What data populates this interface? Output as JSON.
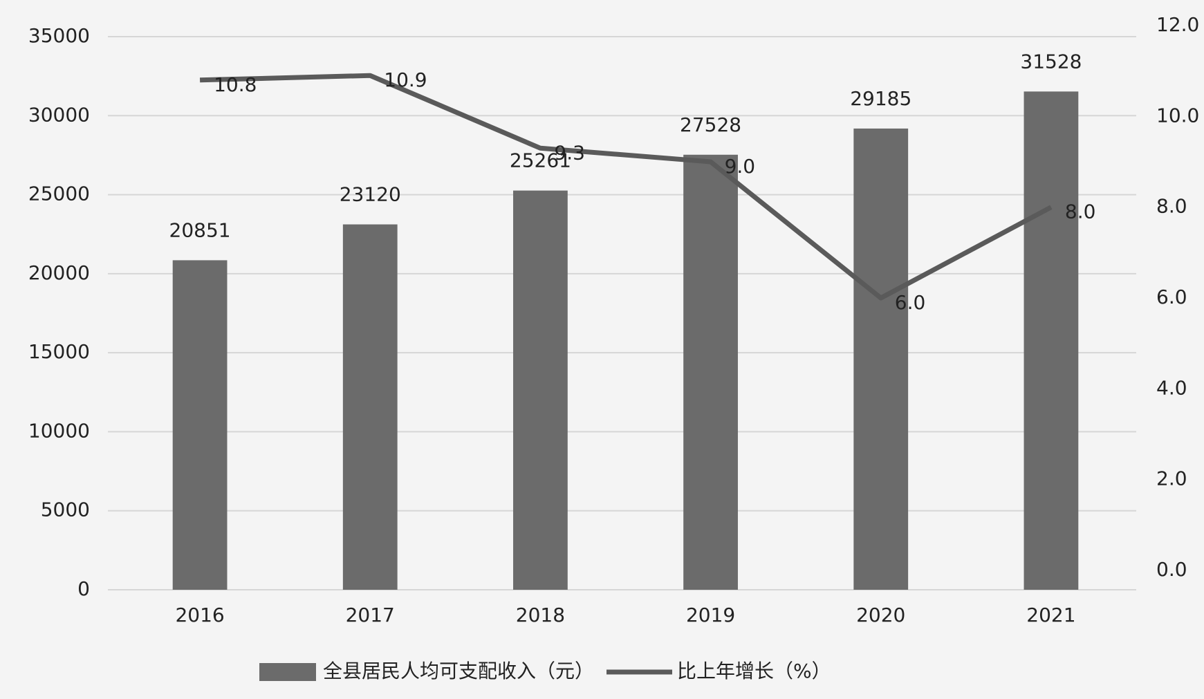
{
  "chart_data": {
    "type": "bar",
    "categories": [
      "2016",
      "2017",
      "2018",
      "2019",
      "2020",
      "2021"
    ],
    "series": [
      {
        "name": "全县居民人均可支配收入（元）",
        "type": "bar",
        "color": "#6b6b6b",
        "values": [
          20851,
          23120,
          25261,
          27528,
          29185,
          31528
        ]
      },
      {
        "name": "比上年增长（%）",
        "type": "line",
        "axis": "y2",
        "color": "#5a5a5a",
        "values": [
          10.8,
          10.9,
          9.3,
          9.0,
          6.0,
          8.0
        ],
        "value_labels": [
          "10.8",
          "10.9",
          "9.3",
          "9.0",
          "6.0",
          "8.0"
        ]
      }
    ],
    "ylim": [
      0,
      35000
    ],
    "yticks": [
      0,
      5000,
      10000,
      15000,
      20000,
      25000,
      30000,
      35000
    ],
    "y2lim": [
      0,
      12
    ],
    "y2ticks": [
      {
        "value": 0,
        "label": "0.0"
      },
      {
        "value": 2,
        "label": "2.0"
      },
      {
        "value": 4,
        "label": "4.0"
      },
      {
        "value": 6,
        "label": "6.0"
      },
      {
        "value": 8,
        "label": "8.0"
      },
      {
        "value": 10,
        "label": "10.0"
      },
      {
        "value": 12,
        "label": "12.0"
      }
    ],
    "grid": true,
    "legend": "bottom"
  }
}
